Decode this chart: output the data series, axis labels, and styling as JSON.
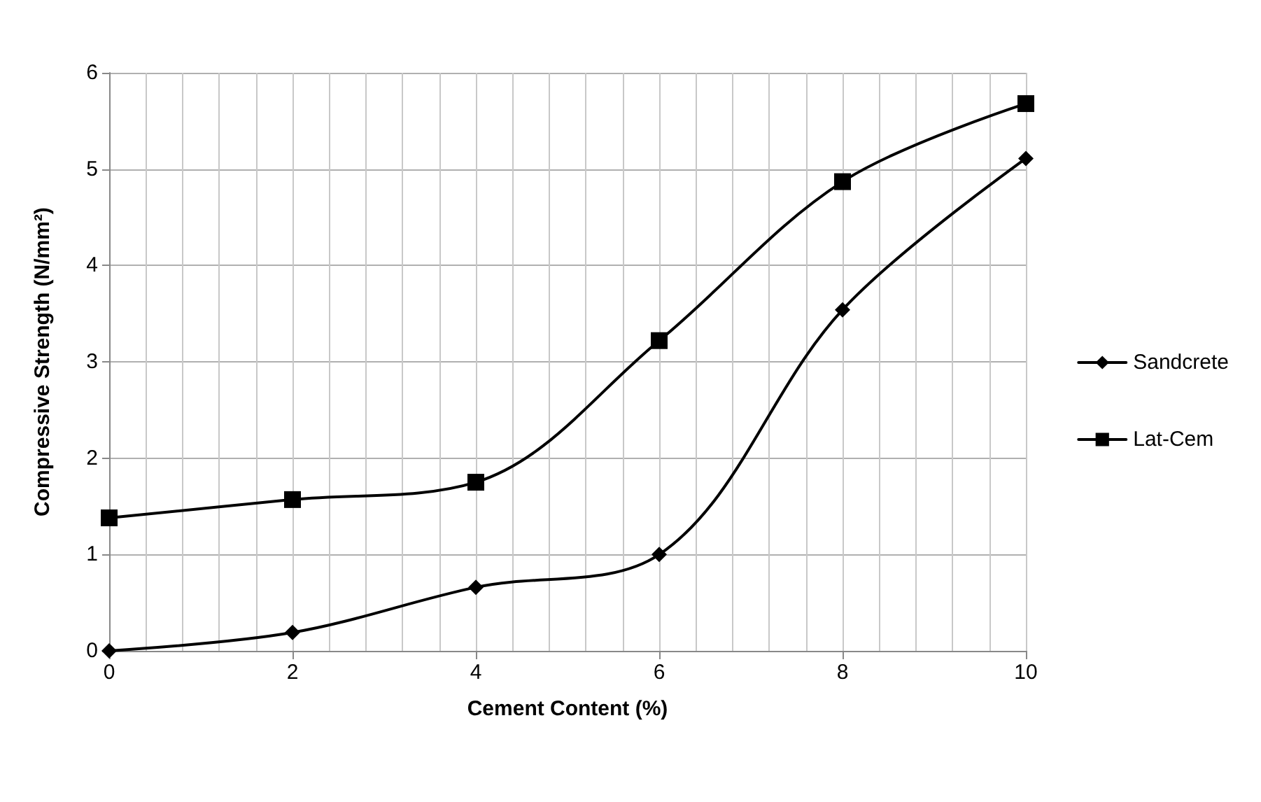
{
  "chart_data": {
    "type": "line",
    "xlabel": "Cement Content (%)",
    "ylabel": "Compressive Strength (N/mm²)",
    "x": [
      0,
      2,
      4,
      6,
      8,
      10
    ],
    "series": [
      {
        "name": "Sandcrete",
        "color": "#000000",
        "marker": "diamond",
        "values": [
          0,
          0.19,
          0.66,
          1.0,
          3.54,
          5.11
        ]
      },
      {
        "name": "Lat-Cem",
        "color": "#000000",
        "marker": "square",
        "values": [
          1.38,
          1.57,
          1.75,
          3.22,
          4.87,
          5.68
        ]
      }
    ],
    "xlim": [
      0,
      10
    ],
    "xticks": [
      0,
      2,
      4,
      6,
      8,
      10
    ],
    "ylim": [
      0,
      6
    ],
    "yticks": [
      0,
      1,
      2,
      3,
      4,
      5,
      6
    ],
    "grid": true,
    "legend": "right",
    "line_style": "solid"
  }
}
